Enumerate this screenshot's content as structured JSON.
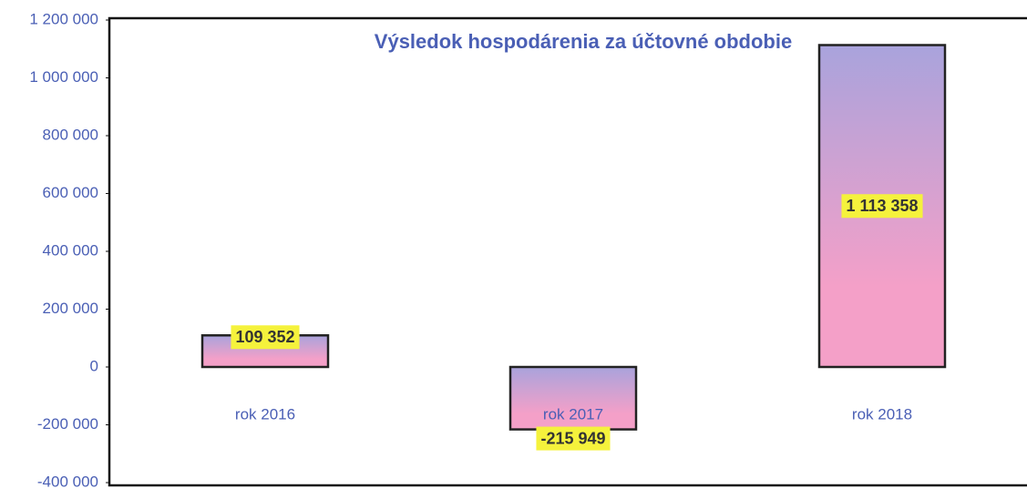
{
  "chart_data": {
    "type": "bar",
    "title": "Výsledok hospodárenia za účtovné obdobie",
    "categories": [
      "rok 2016",
      "rok 2017",
      "rok 2018"
    ],
    "values": [
      109352,
      -215949,
      1113358
    ],
    "value_labels": [
      "109 352",
      "-215 949",
      "1 113 358"
    ],
    "color": [
      "#a9a3dc",
      "#f4a0c8"
    ],
    "ylim": [
      -400000,
      1200000
    ],
    "yticks": [
      {
        "value": -400000,
        "label": "-400 000"
      },
      {
        "value": -200000,
        "label": "-200 000"
      },
      0,
      {
        "value": 200000,
        "label": "200 000"
      },
      {
        "value": 400000,
        "label": "400 000"
      },
      {
        "value": 600000,
        "label": "600 000"
      },
      {
        "value": 800000,
        "label": "800 000"
      },
      {
        "value": 1000000,
        "label": "1 000 000"
      },
      {
        "value": 1200000,
        "label": "1 200 000"
      }
    ],
    "grid": false
  }
}
